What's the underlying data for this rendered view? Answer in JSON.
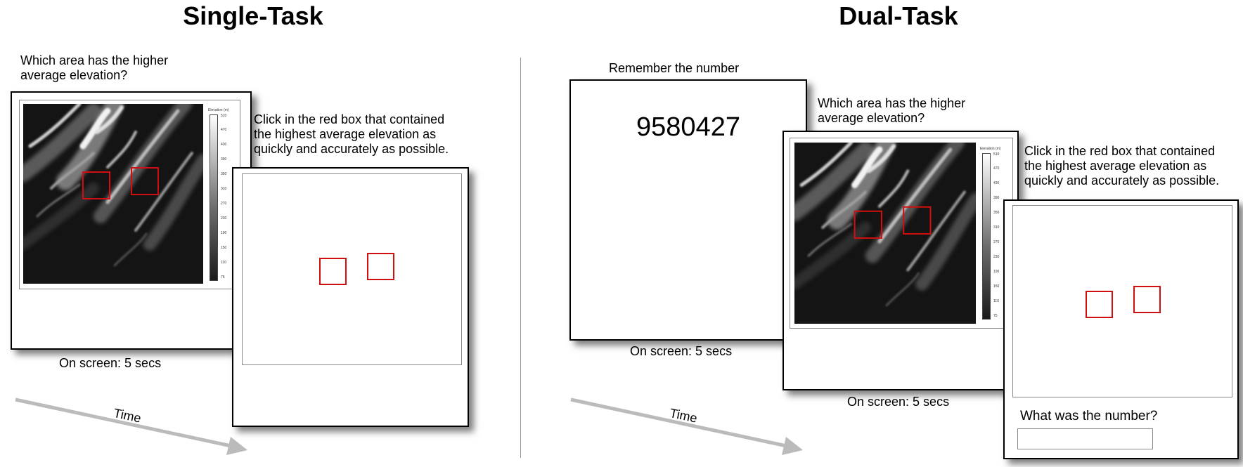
{
  "single_task": {
    "title": "Single-Task",
    "question_line1": "Which area has the higher",
    "question_line2": "average elevation?",
    "instruction_line1": "Click in the red box that contained",
    "instruction_line2": "the highest average elevation as",
    "instruction_line3": "quickly and accurately as possible.",
    "duration": "On screen: 5 secs",
    "time_label": "Time"
  },
  "dual_task": {
    "title": "Dual-Task",
    "remember_label": "Remember the number",
    "number": "9580427",
    "remember_duration": "On screen: 5 secs",
    "question_line1": "Which area has the higher",
    "question_line2": "average elevation?",
    "map_duration": "On screen: 5 secs",
    "instruction_line1": "Click in the red box that contained",
    "instruction_line2": "the highest average elevation as",
    "instruction_line3": "quickly and accurately as possible.",
    "recall_question": "What was the number?",
    "time_label": "Time"
  },
  "elevation_legend": {
    "title": "Elevation (m)",
    "ticks": [
      "510",
      "470",
      "430",
      "390",
      "350",
      "310",
      "270",
      "230",
      "190",
      "150",
      "110",
      "75"
    ]
  },
  "colors": {
    "red_box": "#d01010",
    "arrow": "#bbbbbb",
    "divider": "#999999"
  }
}
